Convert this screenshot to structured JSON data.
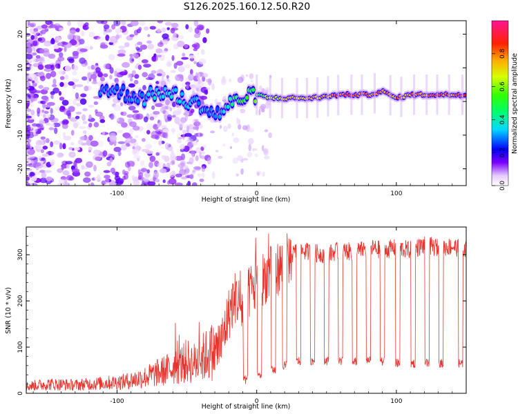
{
  "title": "S126.2025.160.12.50.R20",
  "chart_data": [
    {
      "type": "heatmap",
      "xlabel": "Height of straight line (km)",
      "ylabel": "Frequency (Hz)",
      "xlim": [
        -165,
        150
      ],
      "ylim": [
        -25,
        24
      ],
      "xticks": [
        -100,
        0,
        100
      ],
      "yticks": [
        -20,
        -10,
        0,
        10,
        20
      ],
      "colorbar": {
        "label": "Normalized spectral amplitude",
        "range": [
          0,
          1
        ],
        "ticks": [
          0.0,
          0.2,
          0.4,
          0.6,
          0.8
        ],
        "colormap": [
          "#ffffff",
          "#d9b3ff",
          "#7a00ff",
          "#0000ff",
          "#00e5ff",
          "#00ff2a",
          "#e0ff00",
          "#ff9a00",
          "#ff0000",
          "#ff1493"
        ]
      },
      "ridge": {
        "x": [
          -110,
          -100,
          -90,
          -80,
          -70,
          -60,
          -50,
          -40,
          -30,
          -25,
          -20,
          -10,
          0,
          10,
          20,
          40,
          60,
          80,
          90,
          95,
          100,
          110,
          130,
          150
        ],
        "y": [
          4,
          3,
          2,
          1,
          3,
          2,
          0,
          -1,
          -4,
          -3,
          -1,
          1,
          2,
          1,
          1,
          1,
          2,
          2,
          3,
          2,
          1,
          2,
          2,
          2
        ],
        "amplitude": [
          0.3,
          0.3,
          0.3,
          0.35,
          0.4,
          0.4,
          0.4,
          0.35,
          0.3,
          0.35,
          0.45,
          0.55,
          0.6,
          0.7,
          0.75,
          0.8,
          0.9,
          0.9,
          0.9,
          0.85,
          0.85,
          0.9,
          0.92,
          0.9
        ]
      }
    },
    {
      "type": "line",
      "xlabel": "Height of straight line (km)",
      "ylabel": "SNR (10 * v/v)",
      "xlim": [
        -165,
        150
      ],
      "ylim": [
        0,
        360
      ],
      "xticks": [
        -100,
        0,
        100
      ],
      "yticks": [
        0,
        100,
        200,
        300
      ],
      "color": "#e8322c",
      "series": [
        {
          "x": [
            -165,
            -150,
            -130,
            -110,
            -95,
            -80,
            -70,
            -60,
            -55,
            -50,
            -45,
            -40,
            -35,
            -30,
            -25,
            -22,
            -18,
            -15,
            -10,
            -5,
            0,
            5,
            10,
            15,
            20,
            25,
            30,
            40,
            50,
            60,
            70,
            80,
            90,
            100,
            110,
            120,
            130,
            140,
            150
          ],
          "values": [
            15,
            20,
            18,
            22,
            25,
            35,
            45,
            55,
            60,
            70,
            65,
            75,
            85,
            90,
            110,
            150,
            190,
            210,
            180,
            220,
            230,
            250,
            260,
            270,
            280,
            300,
            310,
            305,
            300,
            310,
            305,
            315,
            310,
            315,
            310,
            320,
            315,
            318,
            310
          ]
        }
      ],
      "dips": {
        "x": [
          -8,
          2,
          12,
          20,
          30,
          40,
          50,
          60,
          70,
          80,
          90,
          101,
          112,
          122,
          132,
          146
        ],
        "values": [
          30,
          40,
          50,
          60,
          70,
          70,
          70,
          70,
          70,
          70,
          70,
          65,
          65,
          65,
          65,
          65
        ]
      }
    }
  ]
}
